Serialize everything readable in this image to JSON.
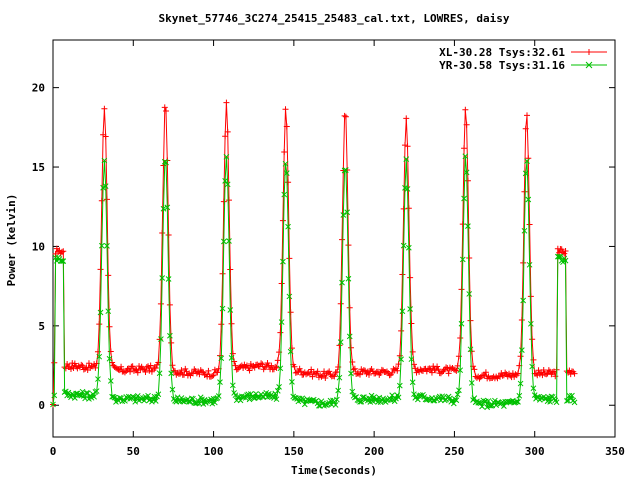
{
  "chart_data": {
    "type": "line",
    "title": "Skynet_57746_3C274_25415_25483_cal.txt, LOWRES, daisy",
    "xlabel": "Time(Seconds)",
    "ylabel": "Power (kelvin)",
    "xlim": [
      0,
      350
    ],
    "ylim": [
      -2,
      23
    ],
    "xticks": [
      0,
      50,
      100,
      150,
      200,
      250,
      300,
      350
    ],
    "yticks": [
      0,
      5,
      10,
      15,
      20
    ],
    "grid": false,
    "legend_position": "top-right",
    "peak_times": [
      32,
      70,
      108,
      145,
      182,
      220,
      257,
      295
    ],
    "series": [
      {
        "name": "XL-30.28 Tsys:32.61",
        "color": "#ff0000",
        "marker": "plus",
        "cal_level": 9.7,
        "cal_segments": [
          [
            1,
            7
          ],
          [
            314,
            320
          ]
        ],
        "peaks": [
          18.8,
          19.0,
          18.9,
          18.7,
          18.5,
          18.2,
          18.8,
          18.3
        ],
        "baseline": [
          [
            0,
            2.5
          ],
          [
            10,
            2.5
          ],
          [
            25,
            2.4
          ],
          [
            40,
            2.2
          ],
          [
            60,
            2.3
          ],
          [
            80,
            2.1
          ],
          [
            100,
            2.0
          ],
          [
            115,
            2.3
          ],
          [
            130,
            2.5
          ],
          [
            140,
            2.4
          ],
          [
            150,
            2.2
          ],
          [
            170,
            1.9
          ],
          [
            190,
            2.1
          ],
          [
            210,
            2.1
          ],
          [
            230,
            2.3
          ],
          [
            245,
            2.2
          ],
          [
            265,
            1.9
          ],
          [
            285,
            1.9
          ],
          [
            300,
            2.0
          ],
          [
            310,
            2.0
          ],
          [
            325,
            2.2
          ]
        ]
      },
      {
        "name": "YR-30.58 Tsys:31.16",
        "color": "#00c000",
        "marker": "x",
        "cal_level": 9.2,
        "cal_segments": [
          [
            1,
            7
          ],
          [
            314,
            320
          ]
        ],
        "peaks": [
          15.4,
          15.7,
          15.6,
          15.5,
          15.4,
          15.3,
          15.6,
          15.4
        ],
        "baseline": [
          [
            0,
            0.8
          ],
          [
            10,
            0.7
          ],
          [
            25,
            0.6
          ],
          [
            40,
            0.4
          ],
          [
            60,
            0.4
          ],
          [
            80,
            0.3
          ],
          [
            100,
            0.3
          ],
          [
            115,
            0.5
          ],
          [
            130,
            0.6
          ],
          [
            140,
            0.5
          ],
          [
            150,
            0.3
          ],
          [
            170,
            0.1
          ],
          [
            190,
            0.4
          ],
          [
            210,
            0.4
          ],
          [
            230,
            0.5
          ],
          [
            245,
            0.4
          ],
          [
            265,
            0.1
          ],
          [
            285,
            0.1
          ],
          [
            300,
            0.4
          ],
          [
            310,
            0.4
          ],
          [
            325,
            0.4
          ]
        ]
      }
    ]
  }
}
